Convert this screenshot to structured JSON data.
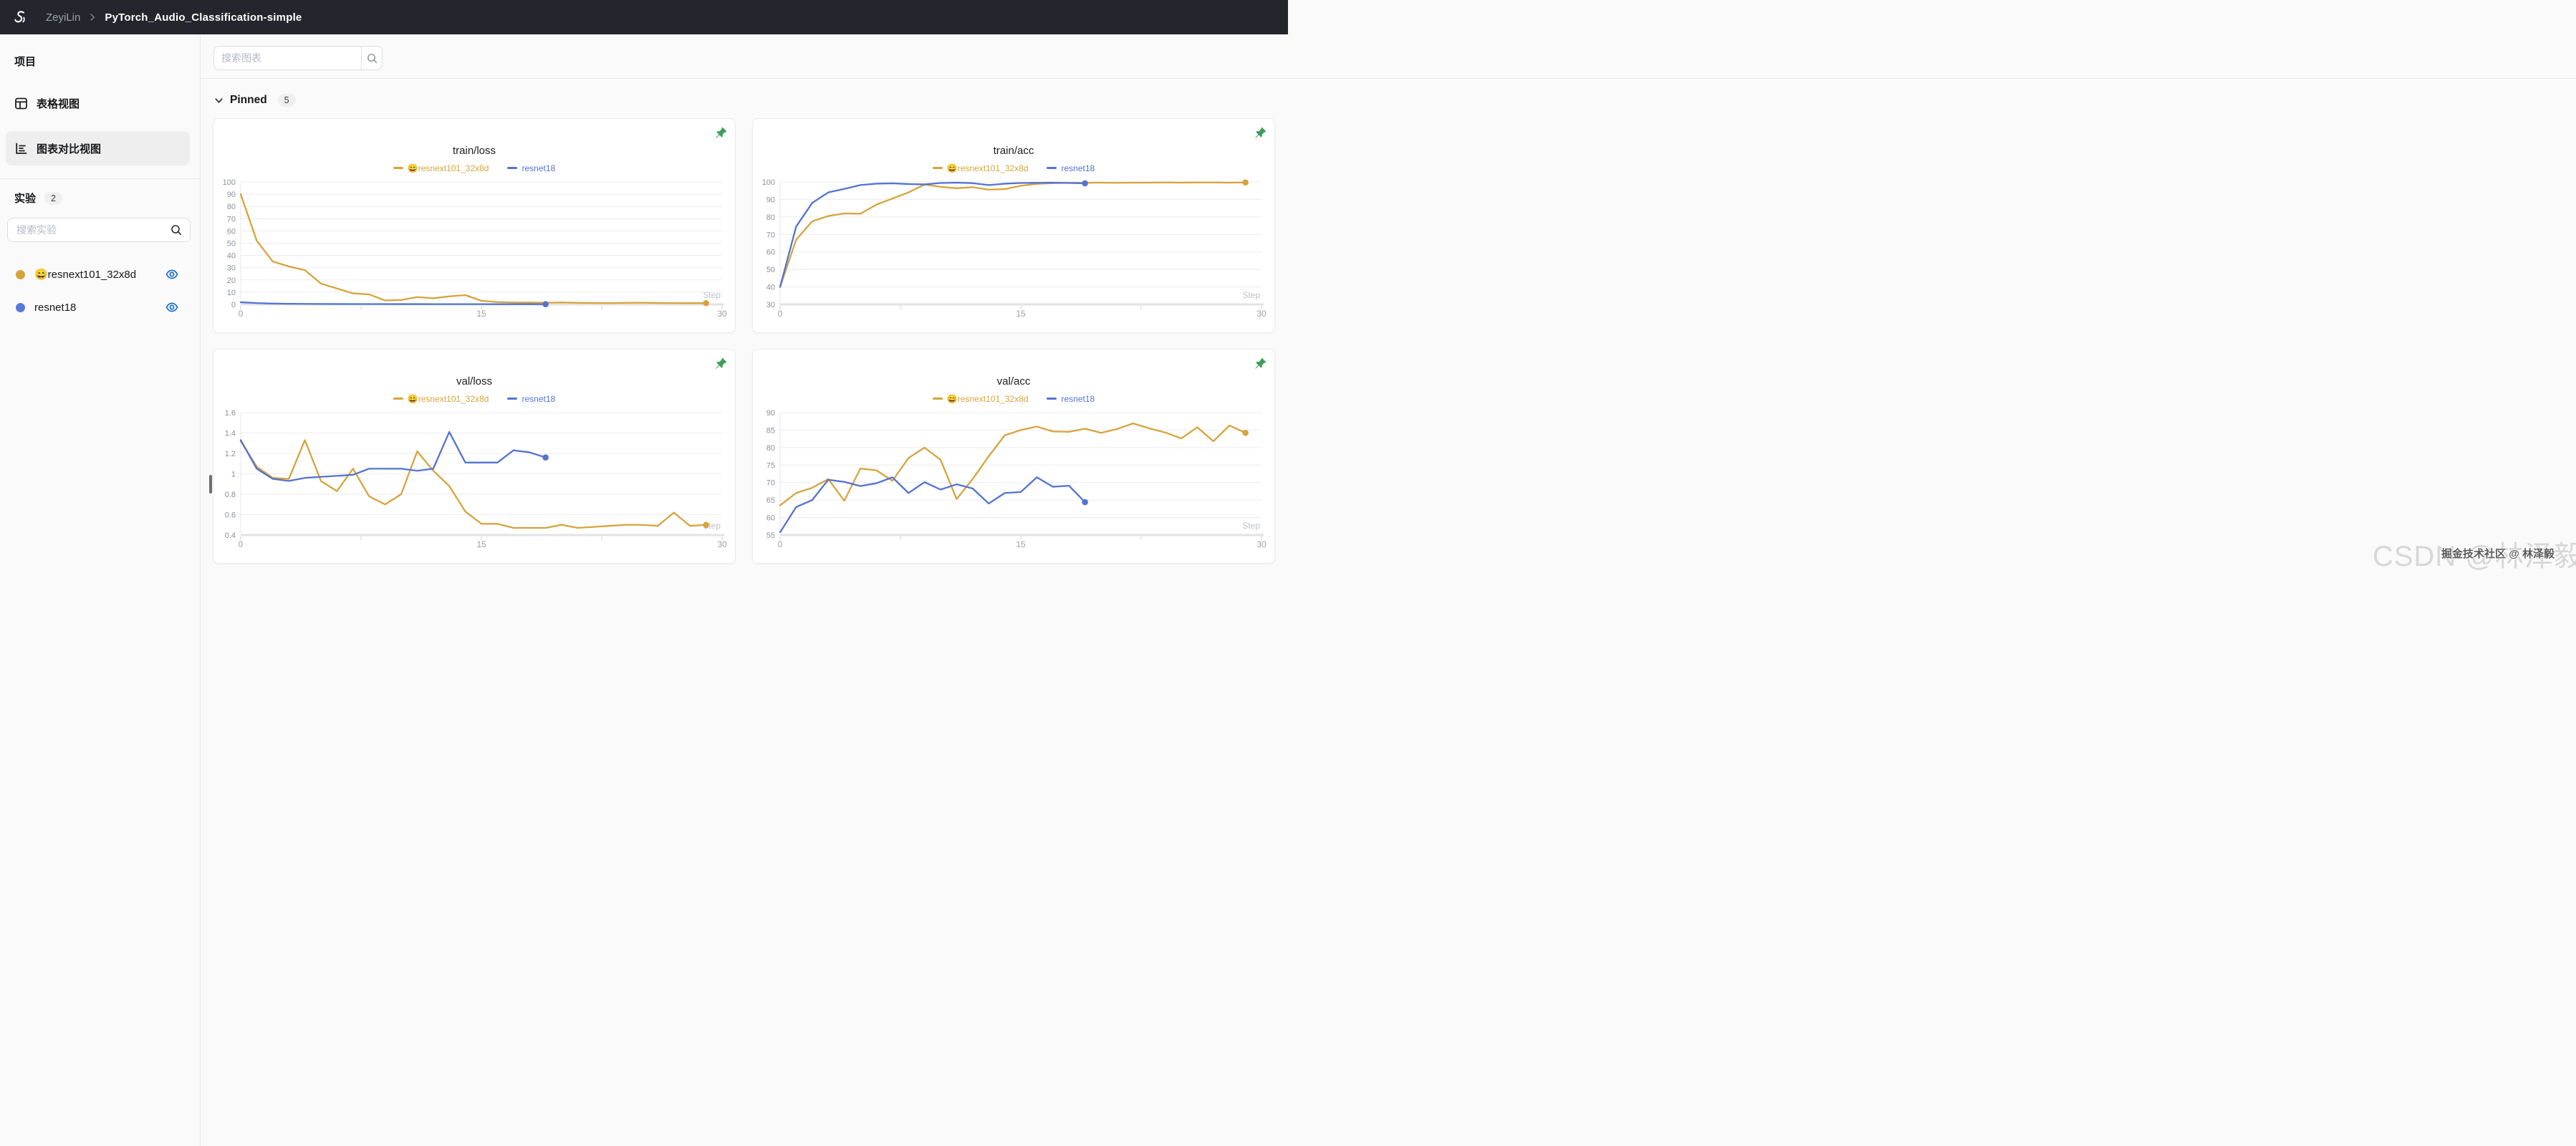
{
  "navbar": {
    "workspace": "ZeyiLin",
    "project": "PyTorch_Audio_Classification-simple"
  },
  "sidebar": {
    "section_project": "项目",
    "items": [
      {
        "label": "表格视图",
        "icon": "table-grid"
      },
      {
        "label": "图表对比视图",
        "icon": "bar-chart",
        "active": true
      }
    ],
    "section_experiments": "实验",
    "experiment_count": "2",
    "search_placeholder": "搜索实验",
    "experiments": [
      {
        "name": "😄resnext101_32x8d",
        "color": "#D6A43C",
        "visible": true
      },
      {
        "name": "resnet18",
        "color": "#5B79DD",
        "visible": true
      }
    ]
  },
  "main": {
    "chart_search_placeholder": "搜索图表",
    "pinned_label": "Pinned",
    "pinned_count": "5"
  },
  "watermarks": {
    "large": "CSDN @林泽毅",
    "small": "掘金技术社区 @ 林泽毅"
  },
  "colors": {
    "accent_yellow": "#D6A43C",
    "accent_blue": "#5473D1",
    "pin_green": "#3E9E5C",
    "eye_blue": "#1D6FD1",
    "navbar_bg": "#24262E"
  },
  "icons": {
    "logo": "swan",
    "breadcrumb": "chevron-right",
    "search": "magnifier",
    "pinned_collapse": "chevron-down",
    "pin": "pushpin",
    "experiment_visible": "eye"
  },
  "chart_data": [
    {
      "type": "line",
      "title": "train/loss",
      "xlabel": "Step",
      "xlim": [
        0,
        30
      ],
      "xticks": [
        0,
        15,
        30
      ],
      "xtick_marks": [
        0,
        7.5,
        15,
        22.5,
        30
      ],
      "ylim": [
        0,
        100
      ],
      "yticks": [
        0,
        10,
        20,
        30,
        40,
        50,
        60,
        70,
        80,
        90,
        100
      ],
      "ytick_labels": [
        "0",
        "10",
        "20",
        "30",
        "40",
        "50",
        "60",
        "70",
        "80",
        "90",
        "100"
      ],
      "grid": true,
      "legend_position": "top-center",
      "series": [
        {
          "name": "😄resnext101_32x8d",
          "color": "#D6A43C",
          "end_dot": true,
          "y": [
            90,
            52,
            35,
            31,
            28,
            17,
            13,
            9,
            8.2,
            3.2,
            3.6,
            6,
            5,
            6.6,
            7.6,
            3,
            1.9,
            1.6,
            1.5,
            1.4,
            1.6,
            1.3,
            1.2,
            1.1,
            1.3,
            1.4,
            1.2,
            1.1,
            1.05,
            1.1
          ]
        },
        {
          "name": "resnet18",
          "color": "#5473D1",
          "end_dot": true,
          "y": [
            1.8,
            1.1,
            0.7,
            0.5,
            0.42,
            0.38,
            0.33,
            0.3,
            0.3,
            0.28,
            0.26,
            0.25,
            0.23,
            0.22,
            0.2,
            0.2,
            0.19,
            0.18,
            0.17,
            0.16
          ]
        }
      ]
    },
    {
      "type": "line",
      "title": "train/acc",
      "xlabel": "Step",
      "xlim": [
        0,
        30
      ],
      "xticks": [
        0,
        15,
        30
      ],
      "xtick_marks": [
        0,
        7.5,
        15,
        22.5,
        30
      ],
      "ylim": [
        30,
        100
      ],
      "yticks": [
        30,
        40,
        50,
        60,
        70,
        80,
        90,
        100
      ],
      "ytick_labels": [
        "30",
        "40",
        "50",
        "60",
        "70",
        "80",
        "90",
        "100"
      ],
      "grid": true,
      "legend_position": "top-center",
      "series": [
        {
          "name": "😄resnext101_32x8d",
          "color": "#D6A43C",
          "end_dot": true,
          "y": [
            40,
            67,
            77.5,
            80.5,
            82,
            81.8,
            87,
            90.5,
            94,
            98.5,
            97.2,
            96.4,
            97,
            95.6,
            95.9,
            97.8,
            98.9,
            99.3,
            99.5,
            99.5,
            99.6,
            99.5,
            99.6,
            99.6,
            99.7,
            99.6,
            99.7,
            99.7,
            99.6,
            99.7
          ]
        },
        {
          "name": "resnet18",
          "color": "#5473D1",
          "end_dot": true,
          "y": [
            40,
            74.5,
            88,
            94,
            96,
            98.2,
            99,
            99.2,
            98.8,
            98.6,
            99.4,
            99.6,
            99.3,
            98.2,
            99,
            99.4,
            99.5,
            99.6,
            99.4,
            99.2
          ]
        }
      ]
    },
    {
      "type": "line",
      "title": "val/loss",
      "xlabel": "Step",
      "xlim": [
        0,
        30
      ],
      "xticks": [
        0,
        15,
        30
      ],
      "xtick_marks": [
        0,
        7.5,
        15,
        22.5,
        30
      ],
      "ylim": [
        0.4,
        1.6
      ],
      "yticks": [
        0.4,
        0.6,
        0.8,
        1,
        1.2,
        1.4,
        1.6
      ],
      "ytick_labels": [
        "0.4",
        "0.6",
        "0.8",
        "1",
        "1.2",
        "1.4",
        "1.6"
      ],
      "grid": true,
      "legend_position": "top-center",
      "series": [
        {
          "name": "😄resnext101_32x8d",
          "color": "#D6A43C",
          "end_dot": true,
          "y": [
            1.32,
            1.07,
            0.96,
            0.95,
            1.33,
            0.93,
            0.83,
            1.05,
            0.78,
            0.7,
            0.8,
            1.22,
            1.03,
            0.88,
            0.63,
            0.51,
            0.51,
            0.47,
            0.47,
            0.47,
            0.5,
            0.47,
            0.48,
            0.49,
            0.5,
            0.5,
            0.49,
            0.62,
            0.49,
            0.5
          ]
        },
        {
          "name": "resnet18",
          "color": "#5473D1",
          "end_dot": true,
          "y": [
            1.33,
            1.05,
            0.95,
            0.93,
            0.96,
            0.97,
            0.98,
            0.99,
            1.05,
            1.05,
            1.05,
            1.03,
            1.05,
            1.41,
            1.11,
            1.11,
            1.11,
            1.23,
            1.21,
            1.16
          ]
        }
      ]
    },
    {
      "type": "line",
      "title": "val/acc",
      "xlabel": "Step",
      "xlim": [
        0,
        30
      ],
      "xticks": [
        0,
        15,
        30
      ],
      "xtick_marks": [
        0,
        7.5,
        15,
        22.5,
        30
      ],
      "ylim": [
        55,
        90
      ],
      "yticks": [
        55,
        60,
        65,
        70,
        75,
        80,
        85,
        90
      ],
      "ytick_labels": [
        "55",
        "60",
        "65",
        "70",
        "75",
        "80",
        "85",
        "90"
      ],
      "grid": true,
      "legend_position": "top-center",
      "series": [
        {
          "name": "😄resnext101_32x8d",
          "color": "#D6A43C",
          "end_dot": true,
          "y": [
            63.5,
            67,
            68.5,
            71,
            64.8,
            74,
            73.5,
            70.5,
            77,
            80,
            76.5,
            65.3,
            71,
            77.5,
            83.5,
            85,
            86,
            84.6,
            84.5,
            85.4,
            84.2,
            85.3,
            86.9,
            85.5,
            84.3,
            82.6,
            85.8,
            81.8,
            86.3,
            84.2
          ]
        },
        {
          "name": "resnet18",
          "color": "#5473D1",
          "end_dot": true,
          "y": [
            55.8,
            63,
            65,
            70.8,
            70.2,
            69,
            69.8,
            71.5,
            67,
            70.1,
            68,
            69.5,
            68.3,
            64,
            67,
            67.3,
            71.5,
            68.8,
            69.1,
            64.4
          ]
        }
      ]
    }
  ]
}
